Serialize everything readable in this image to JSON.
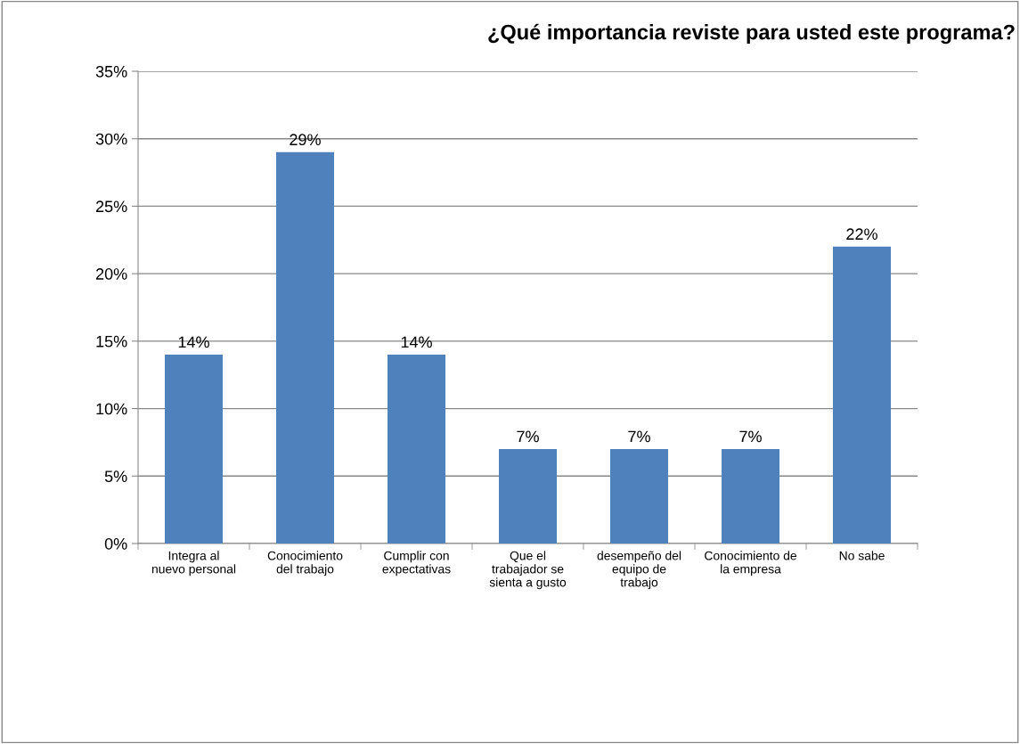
{
  "chart_data": {
    "type": "bar",
    "title": "¿Qué importancia reviste para usted este programa?",
    "categories": [
      "Integra al nuevo personal",
      "Conocimiento del trabajo",
      "Cumplir con expectativas",
      "Que el trabajador se sienta a gusto",
      "desempeño del equipo de trabajo",
      "Conocimiento de la empresa",
      "No sabe"
    ],
    "values": [
      14,
      29,
      14,
      7,
      7,
      7,
      22
    ],
    "value_labels": [
      "14%",
      "29%",
      "14%",
      "7%",
      "7%",
      "7%",
      "22%"
    ],
    "color": "#4f81bd",
    "ylim": [
      0,
      35
    ],
    "yticks": [
      {
        "value": 0,
        "label": "0%"
      },
      {
        "value": 5,
        "label": "5%"
      },
      {
        "value": 10,
        "label": "10%"
      },
      {
        "value": 15,
        "label": "15%"
      },
      {
        "value": 20,
        "label": "20%"
      },
      {
        "value": 25,
        "label": "25%"
      },
      {
        "value": 30,
        "label": "30%"
      },
      {
        "value": 35,
        "label": "35%"
      }
    ],
    "grid": "y",
    "legend": false
  }
}
